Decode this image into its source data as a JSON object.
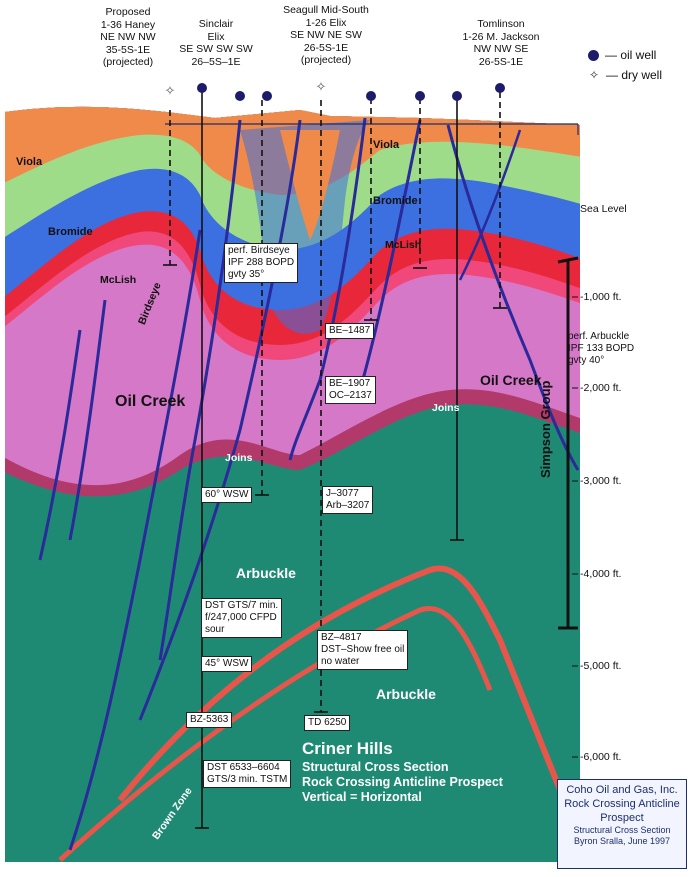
{
  "wells": [
    {
      "lines": [
        "Proposed",
        "1-36 Haney",
        "NE NW NW",
        "35-5S-1E",
        "(projected)"
      ]
    },
    {
      "lines": [
        "Sinclair",
        "Elix",
        "SE SW SW SW",
        "26–5S–1E"
      ]
    },
    {
      "lines": [
        "Seagull Mid-South",
        "1-26 Elix",
        "SE NW NE SW",
        "26-5S-1E",
        "(projected)"
      ]
    },
    {
      "lines": [
        "Tomlinson",
        "1-26 M. Jackson",
        "NW NW SE",
        "26-5S-1E"
      ]
    }
  ],
  "legend": {
    "oil": "— oil well",
    "dry": "— dry well"
  },
  "sea_level": "Sea Level",
  "depths": [
    "-1,000 ft.",
    "-2,000 ft.",
    "-3,000 ft.",
    "-4,000 ft.",
    "-5,000 ft.",
    "-6,000 ft."
  ],
  "formations": {
    "viola_left": "Viola",
    "viola_center": "Viola",
    "bromide_left": "Bromide",
    "bromide_center": "Bromide",
    "mclish_left": "McLish",
    "mclish_center": "McLish",
    "birdseye": "Birdseye",
    "oil_creek_left": "Oil Creek",
    "oil_creek_right": "Oil Creek",
    "joins_left": "Joins",
    "joins_right": "Joins",
    "arbuckle_upper": "Arbuckle",
    "arbuckle_lower": "Arbuckle",
    "brown_zone": "Brown Zone",
    "simpson_group": "Simpson Group"
  },
  "annotations": {
    "perf_birdseye": [
      "perf. Birdseye",
      "IPF 288 BOPD",
      "gvty 35°"
    ],
    "perf_arbuckle": [
      "perf. Arbuckle",
      "IPF 133 BOPD",
      "gvty 40°"
    ],
    "be_1487": [
      "BE–1487"
    ],
    "be_1907": [
      "BE–1907",
      "OC–2137"
    ],
    "j_3077": [
      "J–3077",
      "Arb–3207"
    ],
    "dip_60": [
      "60° WSW"
    ],
    "dip_45": [
      "45° WSW"
    ],
    "dst_gts": [
      "DST GTS/7 min.",
      "f/247,000 CFPD",
      "sour"
    ],
    "bz_4817": [
      "BZ–4817",
      "DST–Show free oil",
      "no water"
    ],
    "bz_5363": [
      "BZ-5363"
    ],
    "td_6250": [
      "TD 6250"
    ],
    "dst_6533": [
      "DST 6533–6604",
      "GTS/3 min. TSTM"
    ]
  },
  "title": {
    "main": "Criner Hills",
    "sub": [
      "Structural Cross Section",
      "Rock Crossing Anticline Prospect",
      "Vertical = Horizontal"
    ]
  },
  "credit": {
    "lines": [
      "Coho Oil and Gas, Inc.",
      "Rock Crossing Anticline",
      "Prospect"
    ],
    "small": [
      "Structural Cross Section",
      "Byron Sralla, June 1997"
    ]
  },
  "colors": {
    "viola": "#f08a4a",
    "bromide": "#9fdc8a",
    "mclish": "#3c6fe0",
    "birdseye": "#f0487a",
    "oil_creek": "#d678c8",
    "joins": "#b23a6a",
    "arbuckle": "#1f8a74",
    "fault": "#2a2a9a",
    "oil_well": "#1c1c6b"
  }
}
